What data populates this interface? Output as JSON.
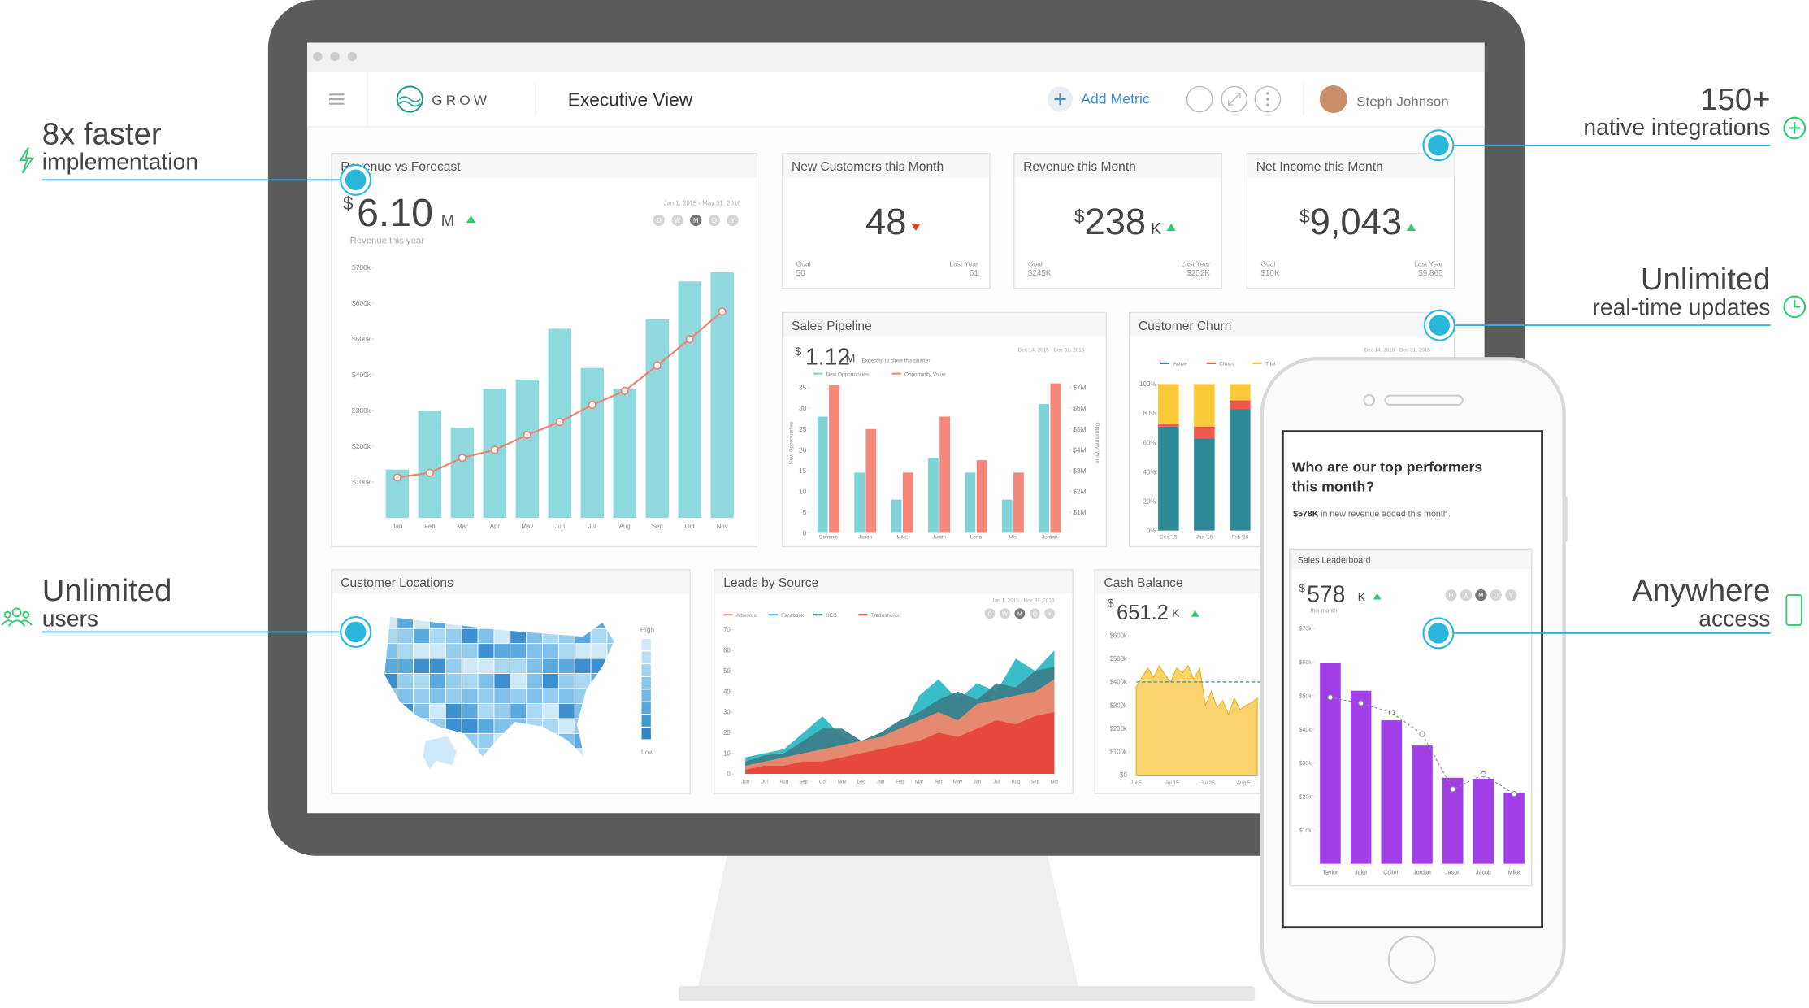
{
  "callouts": [
    {
      "title": "8x faster",
      "subtitle": "implementation"
    },
    {
      "title": "150+",
      "subtitle": "native integrations"
    },
    {
      "title": "Unlimited",
      "subtitle": "real-time updates"
    },
    {
      "title": "Unlimited",
      "subtitle": "users"
    },
    {
      "title": "Anywhere",
      "subtitle": "access"
    }
  ],
  "header": {
    "logo": "GROW",
    "title": "Executive View",
    "add_metric": "Add Metric",
    "user": "Steph Johnson"
  },
  "revenue_vs_forecast": {
    "title": "Revenue vs Forecast",
    "currency": "$",
    "value": "6.10",
    "unit": "M",
    "trend": "up",
    "caption": "Revenue this year",
    "date_range": "Jan 1, 2015 - May 31, 2016",
    "periods": [
      "D",
      "W",
      "M",
      "Q",
      "Y"
    ],
    "categories": [
      "Jan",
      "Feb",
      "Mar",
      "Apr",
      "May",
      "Jun",
      "Jul",
      "Aug",
      "Sep",
      "Oct",
      "Nov"
    ],
    "bars": {
      "color": "#8dd9dc",
      "values": [
        135,
        300,
        252,
        361,
        387,
        529,
        419,
        361,
        555,
        661,
        687
      ]
    },
    "line": {
      "color": "#f08070",
      "values": [
        113,
        126,
        168,
        190,
        232,
        268,
        316,
        355,
        426,
        500,
        577
      ]
    },
    "ylim": [
      0,
      700
    ],
    "yticks": [
      {
        "value": 100,
        "label": "$100k"
      },
      {
        "value": 200,
        "label": "$200k"
      },
      {
        "value": 300,
        "label": "$300k"
      },
      {
        "value": 400,
        "label": "$400k"
      },
      {
        "value": 500,
        "label": "$500k"
      },
      {
        "value": 600,
        "label": "$600k"
      },
      {
        "value": 700,
        "label": "$700k"
      }
    ]
  },
  "kpis": [
    {
      "title": "New Customers this Month",
      "currency": "",
      "value": "48",
      "unit": "",
      "trend": "down",
      "goal_label": "Goal",
      "goal": "50",
      "last_year_label": "Last Year",
      "last_year": "61"
    },
    {
      "title": "Revenue this Month",
      "currency": "$",
      "value": "238",
      "unit": "K",
      "trend": "up",
      "goal_label": "Goal",
      "goal": "$245K",
      "last_year_label": "Last Year",
      "last_year": "$252K"
    },
    {
      "title": "Net Income this Month",
      "currency": "$",
      "value": "9,043",
      "unit": "",
      "trend": "up",
      "goal_label": "Goal",
      "goal": "$10K",
      "last_year_label": "Last Year",
      "last_year": "$9,865"
    }
  ],
  "sales_pipeline": {
    "title": "Sales Pipeline",
    "currency": "$",
    "value": "1.12",
    "unit": "M",
    "caption": "Expected to close this quarter",
    "date_range": "Dec 14, 2015 - Dec 31, 2015",
    "y_label": "New Opportunities",
    "y2_label": "Opportunity Value",
    "categories": [
      "Dominic",
      "Jason",
      "Mike",
      "Justin",
      "Lena",
      "Mei",
      "Jordan"
    ],
    "series": [
      {
        "name": "New Opportunities",
        "color": "#7fd3d6",
        "values": [
          28,
          14.5,
          8,
          18,
          14.5,
          8,
          31
        ]
      },
      {
        "name": "Opportunity Value",
        "color": "#f4877a",
        "axis": "y2",
        "values": [
          7.1,
          5,
          2.9,
          5.6,
          3.5,
          2.9,
          7.2
        ]
      }
    ],
    "ylim": [
      0,
      35
    ],
    "yticks": [
      0,
      5,
      10,
      15,
      20,
      25,
      30,
      35
    ],
    "y2lim": [
      0,
      7
    ],
    "y2ticks": [
      {
        "value": 1,
        "label": "$1M"
      },
      {
        "value": 2,
        "label": "$2M"
      },
      {
        "value": 3,
        "label": "$3M"
      },
      {
        "value": 4,
        "label": "$4M"
      },
      {
        "value": 5,
        "label": "$5M"
      },
      {
        "value": 6,
        "label": "$6M"
      },
      {
        "value": 7,
        "label": "$7M"
      }
    ]
  },
  "customer_churn": {
    "title": "Customer Churn",
    "date_range": "Dec 14, 2015 - Dec 31, 2015",
    "categories": [
      "Dec '15",
      "Jan '16",
      "Feb '16"
    ],
    "series": [
      {
        "name": "Active",
        "color": "#2e8a96",
        "values": [
          71,
          63,
          83
        ]
      },
      {
        "name": "Churn",
        "color": "#ee5a4a",
        "values": [
          2,
          8,
          6
        ]
      },
      {
        "name": "Trial",
        "color": "#f9c93a",
        "values": [
          27,
          29,
          11
        ]
      }
    ],
    "ylim": [
      0,
      100
    ],
    "yticks": [
      {
        "value": 0,
        "label": "0%"
      },
      {
        "value": 20,
        "label": "20%"
      },
      {
        "value": 40,
        "label": "40%"
      },
      {
        "value": 60,
        "label": "60%"
      },
      {
        "value": 80,
        "label": "80%"
      },
      {
        "value": 100,
        "label": "100%"
      }
    ]
  },
  "customer_locations": {
    "title": "Customer Locations",
    "legend_high": "High",
    "legend_low": "Low"
  },
  "leads_by_source": {
    "title": "Leads by Source",
    "date_range": "Jan 1, 2015 - Nov 31, 2016",
    "periods": [
      "D",
      "W",
      "M",
      "Q",
      "Y"
    ],
    "categories": [
      "Jun",
      "Jul",
      "Aug",
      "Sep",
      "Oct",
      "Nov",
      "Dec",
      "Jan",
      "Feb",
      "Mar",
      "Apr",
      "May",
      "Jun",
      "Jul",
      "Aug",
      "Sep",
      "Oct"
    ],
    "series": [
      {
        "name": "Adwords",
        "color": "#ee8a6e",
        "values": [
          4,
          6,
          8,
          10,
          12,
          14,
          16,
          18,
          22,
          26,
          30,
          26,
          34,
          36,
          38,
          40,
          46
        ]
      },
      {
        "name": "Facebook",
        "color": "#2fb8c6",
        "values": [
          8,
          10,
          12,
          20,
          28,
          18,
          14,
          20,
          20,
          38,
          46,
          36,
          44,
          40,
          56,
          50,
          60
        ]
      },
      {
        "name": "SEO",
        "color": "#3a7f8c",
        "values": [
          6,
          9,
          10,
          16,
          22,
          22,
          16,
          20,
          26,
          30,
          36,
          40,
          36,
          44,
          42,
          50,
          52
        ]
      },
      {
        "name": "Tradeshows",
        "color": "#e8463a",
        "values": [
          2,
          4,
          4,
          6,
          6,
          8,
          10,
          12,
          14,
          16,
          20,
          18,
          22,
          26,
          24,
          28,
          30
        ]
      }
    ],
    "ylim": [
      0,
      70
    ],
    "yticks": [
      0,
      10,
      20,
      30,
      40,
      50,
      60,
      70
    ]
  },
  "cash_balance": {
    "title": "Cash Balance",
    "currency": "$",
    "value": "651.2",
    "unit": "K",
    "trend": "up",
    "x_labels": [
      "Jul 5",
      "Jul 15",
      "Jul 25",
      "Aug 5"
    ],
    "color": "#f7c948",
    "reference": 400,
    "values": [
      380,
      420,
      460,
      420,
      470,
      430,
      400,
      460,
      440,
      470,
      410,
      460,
      300,
      360,
      290,
      320,
      260,
      330,
      280,
      300,
      310,
      330
    ],
    "ylim": [
      0,
      600
    ],
    "yticks": [
      {
        "value": 0,
        "label": "$0"
      },
      {
        "value": 100,
        "label": "$100k"
      },
      {
        "value": 200,
        "label": "$200k"
      },
      {
        "value": 300,
        "label": "$300k"
      },
      {
        "value": 400,
        "label": "$400k"
      },
      {
        "value": 500,
        "label": "$500k"
      },
      {
        "value": 600,
        "label": "$600k"
      }
    ]
  },
  "phone": {
    "question": "Who are our top performers this month?",
    "highlight": "$578K",
    "highlight_text": "in new revenue added this month.",
    "widget_title": "Sales Leaderboard",
    "currency": "$",
    "value": "578",
    "unit": "K",
    "trend": "up",
    "caption": "this month",
    "periods": [
      "D",
      "W",
      "M",
      "Q",
      "Y"
    ],
    "categories": [
      "Taylor",
      "Jake",
      "Colten",
      "Jordan",
      "Jason",
      "Jacob",
      "Mike"
    ],
    "bars": {
      "color": "#a23ee8",
      "values": [
        59.7,
        51.5,
        42.7,
        35.2,
        25.6,
        25.3,
        21.2
      ]
    },
    "line": {
      "color": "#888888",
      "values": [
        49.5,
        47.8,
        45,
        38.6,
        22.2,
        26.6,
        20.8
      ]
    },
    "ylim": [
      0,
      70
    ],
    "yticks": [
      {
        "value": 10,
        "label": "$10k"
      },
      {
        "value": 20,
        "label": "$20k"
      },
      {
        "value": 30,
        "label": "$30k"
      },
      {
        "value": 40,
        "label": "$40k"
      },
      {
        "value": 50,
        "label": "$50k"
      },
      {
        "value": 60,
        "label": "$60k"
      },
      {
        "value": 70,
        "label": "$70k"
      }
    ]
  }
}
